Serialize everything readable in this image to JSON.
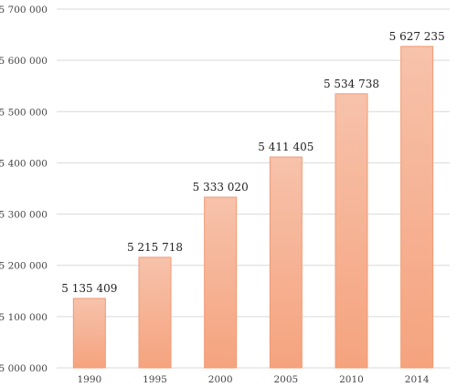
{
  "chart_data": {
    "type": "bar",
    "categories": [
      "1990",
      "1995",
      "2000",
      "2005",
      "2010",
      "2014"
    ],
    "values": [
      5135409,
      5215718,
      5333020,
      5411405,
      5534738,
      5627235
    ],
    "value_labels": [
      "5 135 409",
      "5 215 718",
      "5 333 020",
      "5 411 405",
      "5 534 738",
      "5 627 235"
    ],
    "title": "",
    "xlabel": "",
    "ylabel": "",
    "ylim": [
      5000000,
      5700000
    ],
    "yticks": [
      5000000,
      5100000,
      5200000,
      5300000,
      5400000,
      5500000,
      5600000,
      5700000
    ],
    "ytick_labels": [
      "5 000 000",
      "5 100 000",
      "5 200 000",
      "5 300 000",
      "5 400 000",
      "5 500 000",
      "5 600 000",
      "5 700 000"
    ],
    "grid": true,
    "legend": "none",
    "colors": {
      "bar_top": "#f7c2ab",
      "bar_bottom": "#f5a37e",
      "bar_stroke": "#f29a73",
      "grid": "#d9d9d9",
      "text": "#444444"
    }
  }
}
